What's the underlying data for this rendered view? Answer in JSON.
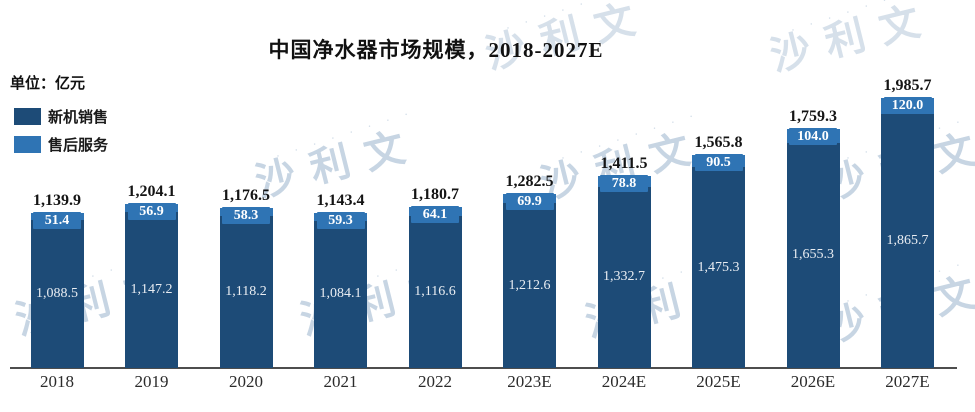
{
  "header": {
    "title": "中国净水器市场规模，2018-2027E",
    "unit_label": "单位：亿元"
  },
  "legend": {
    "items": [
      {
        "label": "新机销售",
        "color": "#1d4b77"
      },
      {
        "label": "售后服务",
        "color": "#2f74b4"
      }
    ]
  },
  "watermark": {
    "text": "沙利文",
    "dots": "· · · · · · · ·"
  },
  "chart_data": {
    "type": "bar",
    "stacked": true,
    "title": "中国净水器市场规模，2018-2027E",
    "unit": "亿元",
    "categories": [
      "2018",
      "2019",
      "2020",
      "2021",
      "2022",
      "2023E",
      "2024E",
      "2025E",
      "2026E",
      "2027E"
    ],
    "series": [
      {
        "name": "新机销售",
        "color": "#1d4b77",
        "values": [
          1088.5,
          1147.2,
          1118.2,
          1084.1,
          1116.6,
          1212.6,
          1332.7,
          1475.3,
          1655.3,
          1865.7
        ]
      },
      {
        "name": "售后服务",
        "color": "#2f74b4",
        "values": [
          51.4,
          56.9,
          58.3,
          59.3,
          64.1,
          69.9,
          78.8,
          90.5,
          104.0,
          120.0
        ]
      }
    ],
    "totals": [
      1139.9,
      1204.1,
      1176.5,
      1143.4,
      1180.7,
      1282.5,
      1411.5,
      1565.8,
      1759.3,
      1985.7
    ],
    "ylim": [
      0,
      2000
    ],
    "grid": false,
    "legend_position": "top-left",
    "value_label_format": "thousands-comma-1dp"
  }
}
